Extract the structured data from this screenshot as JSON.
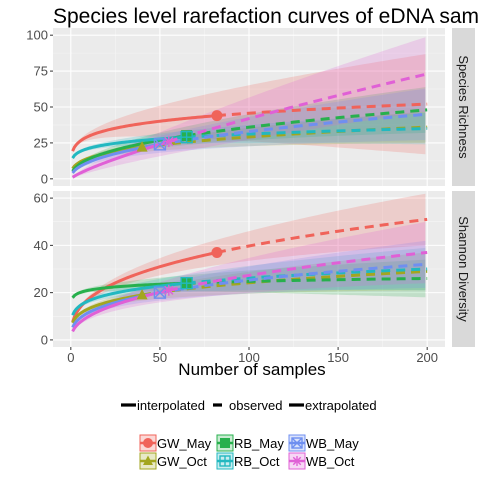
{
  "chart_data": {
    "type": "line",
    "title": "Species level rarefaction curves of eDNA samples",
    "xlabel": "Number of samples",
    "xlim": [
      -10,
      210
    ],
    "xticks": [
      0,
      50,
      100,
      150,
      200
    ],
    "colors": {
      "GW_May": "#f0635a",
      "GW_Oct": "#a3a620",
      "RB_May": "#27b04d",
      "RB_Oct": "#22b8c0",
      "WB_May": "#6f8ff0",
      "WB_Oct": "#e060d6"
    },
    "panels": [
      {
        "strip_label": "Species Richness",
        "ylim": [
          -5,
          105
        ],
        "yticks": [
          0,
          25,
          50,
          75,
          100
        ],
        "series": [
          {
            "name": "GW_May",
            "observed": [
              82,
              44
            ],
            "final": [
              200,
              52
            ],
            "band": [
              [
                2,
                0.5
              ],
              [
                200,
                35
              ]
            ],
            "shape": "circle"
          },
          {
            "name": "GW_Oct",
            "observed": [
              40,
              22
            ],
            "final": [
              200,
              36
            ],
            "band": [
              [
                2,
                0.8
              ],
              [
                200,
                11
              ]
            ],
            "shape": "triangle"
          },
          {
            "name": "RB_May",
            "observed": [
              65,
              30
            ],
            "final": [
              200,
              48
            ],
            "band": [
              [
                2,
                0.7
              ],
              [
                200,
                16
              ]
            ],
            "shape": "square"
          },
          {
            "name": "RB_Oct",
            "observed": [
              65,
              29
            ],
            "final": [
              200,
              35
            ],
            "band": [
              [
                2,
                0.7
              ],
              [
                200,
                11
              ]
            ],
            "shape": "square-plus"
          },
          {
            "name": "WB_May",
            "observed": [
              50,
              24
            ],
            "final": [
              200,
              45
            ],
            "band": [
              [
                2,
                0.7
              ],
              [
                200,
                18
              ]
            ],
            "shape": "square-x"
          },
          {
            "name": "WB_Oct",
            "observed": [
              55,
              26
            ],
            "final": [
              200,
              73
            ],
            "band": [
              [
                2,
                0.8
              ],
              [
                200,
                26
              ]
            ],
            "shape": "asterisk"
          }
        ]
      },
      {
        "strip_label": "Shannon Diversity",
        "ylim": [
          -3,
          63
        ],
        "yticks": [
          0,
          20,
          40,
          60
        ],
        "series": [
          {
            "name": "GW_May",
            "observed": [
              82,
              37
            ],
            "final": [
              200,
              51
            ],
            "band": [
              [
                2,
                0.5
              ],
              [
                200,
                11
              ]
            ],
            "shape": "circle"
          },
          {
            "name": "GW_Oct",
            "observed": [
              40,
              19
            ],
            "final": [
              200,
              29
            ],
            "band": [
              [
                2,
                0.5
              ],
              [
                200,
                8
              ]
            ],
            "shape": "triangle"
          },
          {
            "name": "RB_May",
            "observed": [
              65,
              24
            ],
            "final": [
              200,
              26
            ],
            "band": [
              [
                2,
                0.5
              ],
              [
                200,
                8
              ]
            ],
            "shape": "square"
          },
          {
            "name": "RB_Oct",
            "observed": [
              65,
              24
            ],
            "final": [
              200,
              30
            ],
            "band": [
              [
                2,
                0.5
              ],
              [
                200,
                9
              ]
            ],
            "shape": "square-plus"
          },
          {
            "name": "WB_May",
            "observed": [
              50,
              20
            ],
            "final": [
              200,
              32
            ],
            "band": [
              [
                2,
                0.5
              ],
              [
                200,
                10
              ]
            ],
            "shape": "square-x"
          },
          {
            "name": "WB_Oct",
            "observed": [
              55,
              21
            ],
            "final": [
              200,
              37
            ],
            "band": [
              [
                2,
                0.5
              ],
              [
                200,
                13
              ]
            ],
            "shape": "asterisk"
          }
        ]
      }
    ],
    "linetype_legend": [
      "interpolated",
      "observed",
      "extrapolated"
    ],
    "legend_order": [
      "GW_May",
      "GW_Oct",
      "RB_May",
      "RB_Oct",
      "WB_May",
      "WB_Oct"
    ],
    "legend_placement": "bottom",
    "grid": true
  }
}
